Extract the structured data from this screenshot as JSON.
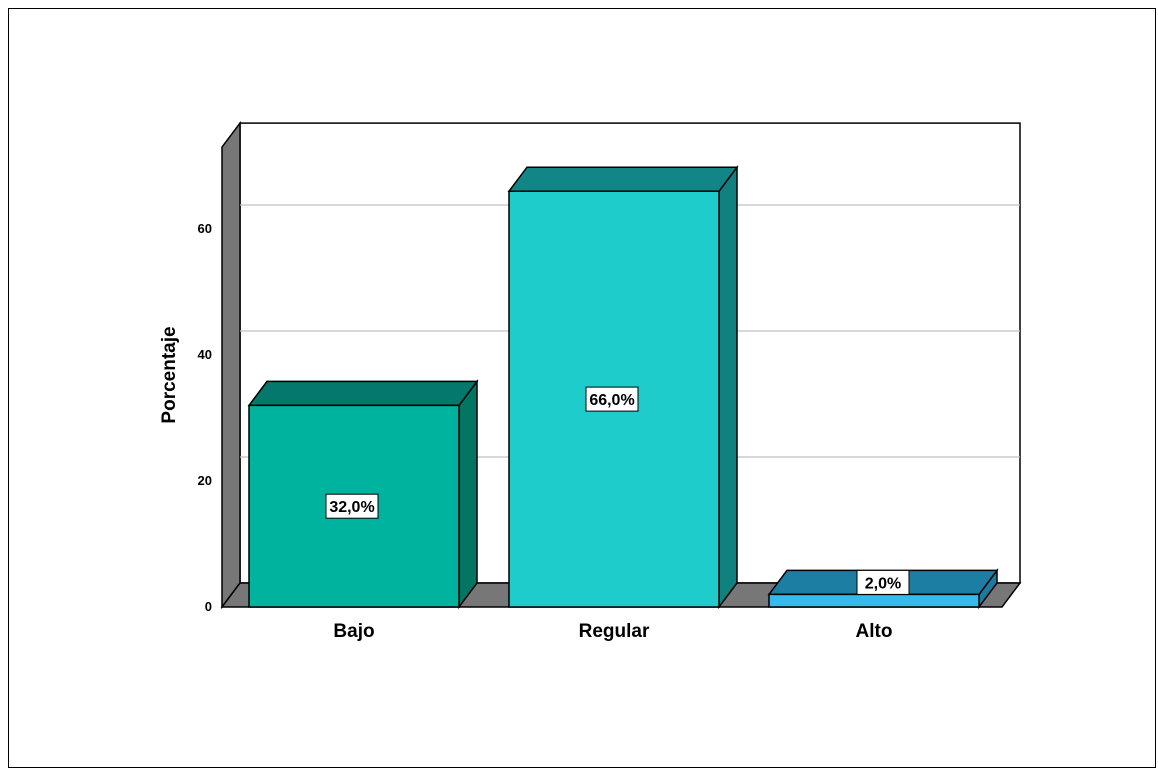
{
  "chart_data": {
    "type": "bar",
    "categories": [
      "Bajo",
      "Regular",
      "Alto"
    ],
    "values": [
      32.0,
      66.0,
      2.0
    ],
    "data_labels": [
      "32,0%",
      "66,0%",
      "2,0%"
    ],
    "title": "",
    "xlabel": "",
    "ylabel": "Porcentaje",
    "ylim": [
      0,
      73
    ],
    "yticks": [
      0,
      20,
      40,
      60
    ],
    "ytick_labels": [
      "0",
      "20",
      "40",
      "60"
    ],
    "grid": true,
    "style": "3d",
    "colors": {
      "bar_fronts": [
        "#00b39f",
        "#1fcccc",
        "#33bbee"
      ],
      "bar_tops": [
        "#03786b",
        "#128686",
        "#1d7ea3"
      ],
      "bar_sides": [
        "#027563",
        "#118180",
        "#1a7aa0"
      ],
      "walls": "#777777",
      "gridlines": "#c0c0c0"
    }
  }
}
